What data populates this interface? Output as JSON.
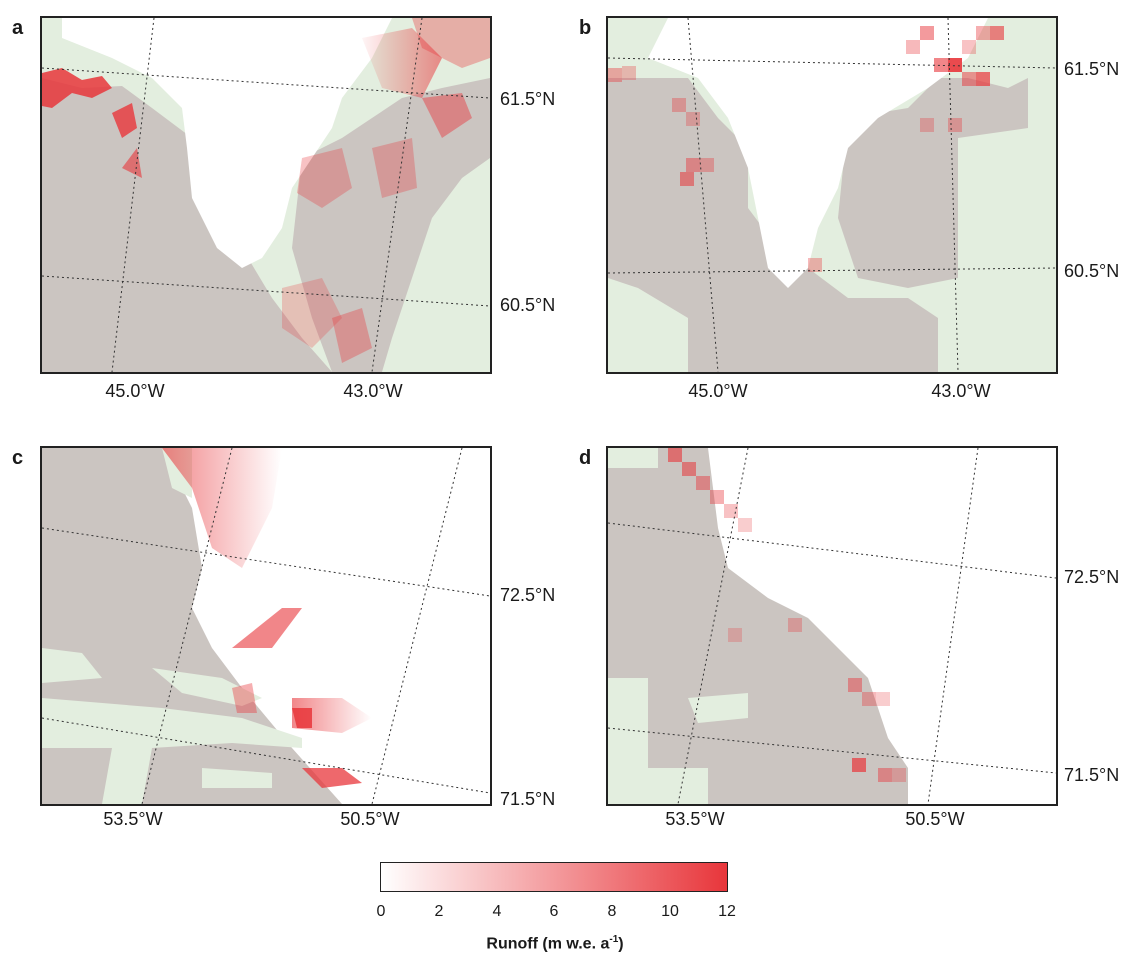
{
  "panels": [
    {
      "letter": "a",
      "lat_labels": [
        "61.5°N",
        "60.5°N"
      ],
      "lon_labels": [
        "45.0°W",
        "43.0°W"
      ]
    },
    {
      "letter": "b",
      "lat_labels": [
        "61.5°N",
        "60.5°N"
      ],
      "lon_labels": [
        "45.0°W",
        "43.0°W"
      ]
    },
    {
      "letter": "c",
      "lat_labels": [
        "72.5°N",
        "71.5°N"
      ],
      "lon_labels": [
        "53.5°W",
        "50.5°W"
      ]
    },
    {
      "letter": "d",
      "lat_labels": [
        "72.5°N",
        "71.5°N"
      ],
      "lon_labels": [
        "53.5°W",
        "50.5°W"
      ]
    }
  ],
  "colorbar": {
    "ticks": [
      "0",
      "2",
      "4",
      "6",
      "8",
      "10",
      "12"
    ],
    "title": "Runoff (m w.e. a",
    "title_sup": "-1",
    "title_end": ")",
    "min": 0,
    "max": 12,
    "color_low": "#ffffff",
    "color_high": "#e8363b"
  },
  "colors": {
    "land": "#cbc5c1",
    "ocean": "#e3eedf",
    "ice": "#ffffff",
    "runoff": "#e8363b"
  }
}
